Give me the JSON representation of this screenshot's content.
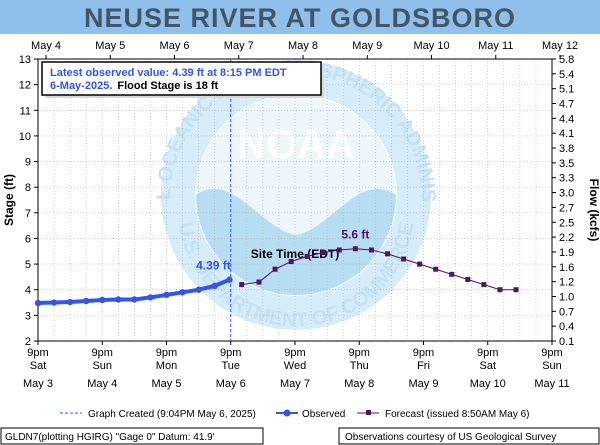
{
  "title": "NEUSE RIVER AT GOLDSBORO",
  "info_box": {
    "line1": "Latest observed value: 4.39 ft at 8:15 PM EDT",
    "line2_date": "6-May-2025.",
    "line2_flood": "Flood Stage is 18 ft"
  },
  "colors": {
    "title_band": "#8fc0ec",
    "observed": "#3355ee",
    "forecast": "#551166",
    "grid": "#b0b0b0",
    "noara_logo": "#aad8f0"
  },
  "logo": {
    "center_text": "NOAA",
    "ring_top": "NATIONAL OCEANIC AND ATMOSPHERIC ADMINISTRATION",
    "ring_bottom": "U.S. DEPARTMENT OF COMMERCE"
  },
  "chart_data": {
    "type": "line",
    "xlabel": "Site Time (EDT)",
    "ylabel_left": "Stage (ft)",
    "ylabel_right": "Flow (kcfs)",
    "ylim_left": [
      2,
      13
    ],
    "ylim_right": [
      0.1,
      5.8
    ],
    "yticks_left": [
      "2",
      "3",
      "4",
      "5",
      "6",
      "7",
      "8",
      "9",
      "10",
      "11",
      "12",
      "13"
    ],
    "yticks_right": [
      "0.1",
      "0.4",
      "0.7",
      "1.0",
      "1.2",
      "1.6",
      "1.9",
      "2.2",
      "2.5",
      "2.7",
      "3.0",
      "3.3",
      "3.5",
      "3.8",
      "4.1",
      "4.4",
      "4.7",
      "5.1",
      "5.4",
      "5.8"
    ],
    "top_ticks": [
      "May  4",
      "May  5",
      "May  6",
      "May  7",
      "May  8",
      "May  9",
      "May 10",
      "May 11",
      "May 12"
    ],
    "bottom_ticks": [
      {
        "time": "9pm",
        "day": "Sat",
        "date": "May 3"
      },
      {
        "time": "9pm",
        "day": "Sun",
        "date": "May 4"
      },
      {
        "time": "9pm",
        "day": "Mon",
        "date": "May 5"
      },
      {
        "time": "9pm",
        "day": "Tue",
        "date": "May 6"
      },
      {
        "time": "9pm",
        "day": "Wed",
        "date": "May 7"
      },
      {
        "time": "9pm",
        "day": "Thu",
        "date": "May 8"
      },
      {
        "time": "9pm",
        "day": "Fri",
        "date": "May 9"
      },
      {
        "time": "9pm",
        "day": "Sat",
        "date": "May 10"
      },
      {
        "time": "9pm",
        "day": "Sun",
        "date": "May 11"
      }
    ],
    "graph_created_day": 3.0,
    "series": [
      {
        "name": "Observed",
        "x": [
          0,
          0.25,
          0.5,
          0.75,
          1.0,
          1.25,
          1.5,
          1.75,
          2.0,
          2.25,
          2.5,
          2.75,
          2.98
        ],
        "y": [
          3.48,
          3.5,
          3.52,
          3.56,
          3.6,
          3.62,
          3.62,
          3.7,
          3.8,
          3.9,
          4.0,
          4.15,
          4.39
        ]
      },
      {
        "name": "Forecast",
        "x": [
          3.17,
          3.44,
          3.69,
          3.94,
          4.19,
          4.44,
          4.69,
          4.94,
          5.19,
          5.44,
          5.69,
          5.94,
          6.19,
          6.44,
          6.69,
          6.94,
          7.19,
          7.44
        ],
        "y": [
          4.2,
          4.3,
          4.8,
          5.1,
          5.3,
          5.45,
          5.55,
          5.6,
          5.55,
          5.4,
          5.2,
          5.0,
          4.8,
          4.6,
          4.4,
          4.2,
          4.0,
          4.0
        ]
      }
    ],
    "annotations": [
      {
        "text": "4.39 ft",
        "x": 2.98,
        "y": 4.39
      },
      {
        "text": "5.6 ft",
        "x": 4.94,
        "y": 5.6
      }
    ]
  },
  "legend": {
    "graph_created": "Graph Created (9:04PM May 6, 2025)",
    "observed": "Observed",
    "forecast": "Forecast (issued 8:50AM May 6)"
  },
  "footer": {
    "left": "GLDN7(plotting HGIRG) \"Gage 0\" Datum: 41.9'",
    "right": "Observations courtesy of US Geological Survey"
  }
}
